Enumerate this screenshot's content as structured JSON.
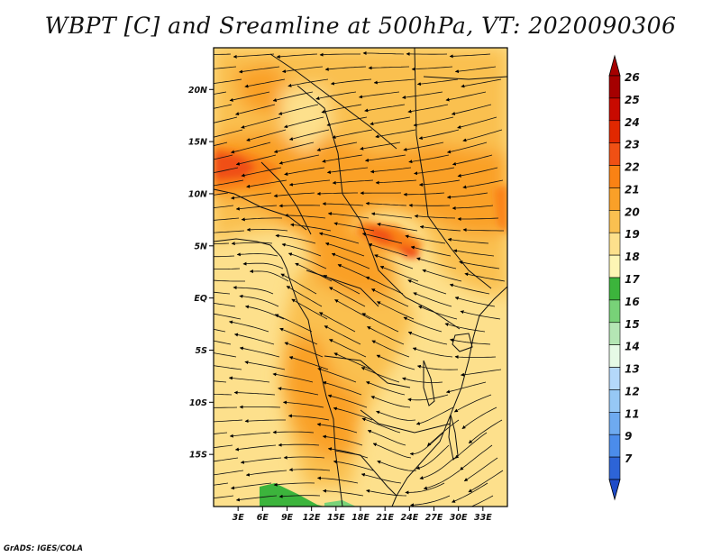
{
  "title": "WBPT [C] and Sreamline at 500hPa, VT: 2020090306",
  "credit": "GrADS: IGES/COLA",
  "map": {
    "projection": "lat-lon",
    "lon_range": [
      0,
      36
    ],
    "lat_range": [
      -20,
      24
    ],
    "lon_ticks": [
      {
        "value": 3,
        "label": "3E"
      },
      {
        "value": 6,
        "label": "6E"
      },
      {
        "value": 9,
        "label": "9E"
      },
      {
        "value": 12,
        "label": "12E"
      },
      {
        "value": 15,
        "label": "15E"
      },
      {
        "value": 18,
        "label": "18E"
      },
      {
        "value": 21,
        "label": "21E"
      },
      {
        "value": 24,
        "label": "24E"
      },
      {
        "value": 27,
        "label": "27E"
      },
      {
        "value": 30,
        "label": "30E"
      },
      {
        "value": 33,
        "label": "33E"
      }
    ],
    "lat_ticks": [
      {
        "value": 20,
        "label": "20N"
      },
      {
        "value": 15,
        "label": "15N"
      },
      {
        "value": 10,
        "label": "10N"
      },
      {
        "value": 5,
        "label": "5N"
      },
      {
        "value": 0,
        "label": "EQ"
      },
      {
        "value": -5,
        "label": "5S"
      },
      {
        "value": -10,
        "label": "10S"
      },
      {
        "value": -15,
        "label": "15S"
      }
    ],
    "field": "WBPT",
    "field_units": "C",
    "streamline_level": "500hPa"
  },
  "colorbar": {
    "orientation": "vertical",
    "extend": "both",
    "levels": [
      {
        "label": "26",
        "color": "#a50000"
      },
      {
        "label": "25",
        "color": "#c80a00"
      },
      {
        "label": "24",
        "color": "#e12800"
      },
      {
        "label": "23",
        "color": "#f05014"
      },
      {
        "label": "22",
        "color": "#fa8214"
      },
      {
        "label": "21",
        "color": "#faa028"
      },
      {
        "label": "20",
        "color": "#fac050"
      },
      {
        "label": "19",
        "color": "#fde08c"
      },
      {
        "label": "18",
        "color": "#fdf5b4"
      },
      {
        "label": "17",
        "color": "#3cb43c"
      },
      {
        "label": "16",
        "color": "#78d278"
      },
      {
        "label": "15",
        "color": "#b4e6b4"
      },
      {
        "label": "14",
        "color": "#e6fae6"
      },
      {
        "label": "13",
        "color": "#b4d8fa"
      },
      {
        "label": "12",
        "color": "#96c8f5"
      },
      {
        "label": "11",
        "color": "#6eaaf0"
      },
      {
        "label": "9",
        "color": "#4b8ceb"
      },
      {
        "label": "7",
        "color": "#2d64d7"
      }
    ],
    "under_color": "#1e4bc8"
  }
}
